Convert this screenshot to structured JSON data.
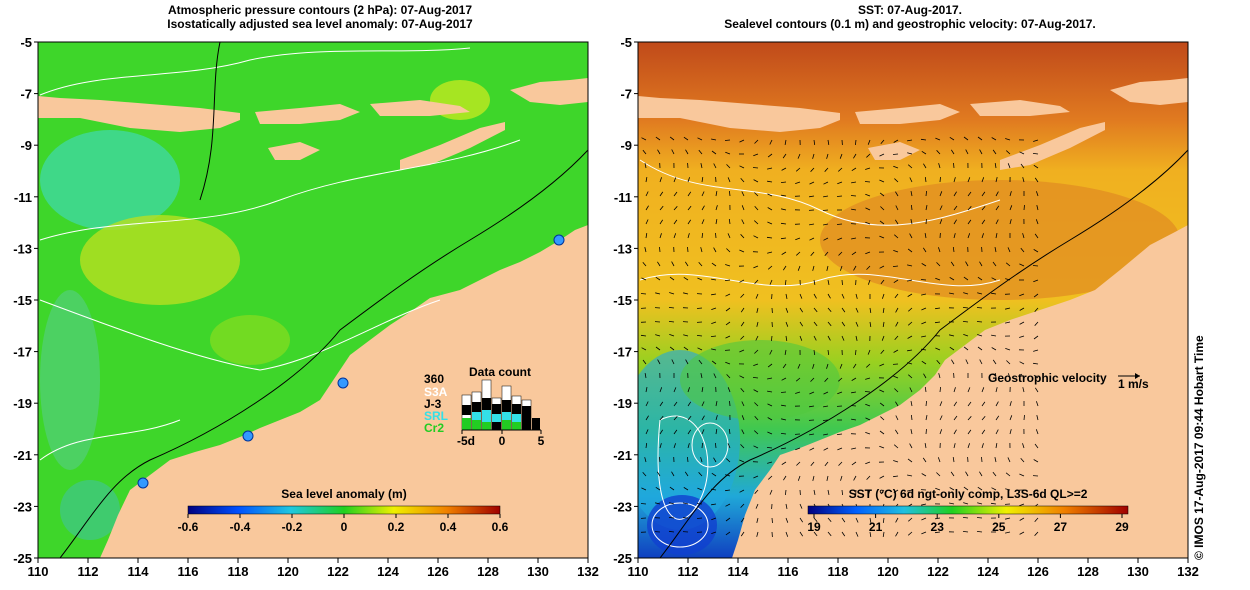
{
  "left_panel": {
    "title_line1": "Atmospheric pressure contours (2 hPa): 07-Aug-2017",
    "title_line2": "Isostatically adjusted sea level anomaly: 07-Aug-2017",
    "colorbar": {
      "label": "Sea level anomaly (m)",
      "ticks": [
        "-0.6",
        "-0.4",
        "-0.2",
        "0",
        "0.2",
        "0.4",
        "0.6"
      ]
    },
    "data_count": {
      "title": "Data count",
      "max_label": "360",
      "legend": [
        {
          "label": "S3A",
          "color": "#ffffff"
        },
        {
          "label": "J-3",
          "color": "#000000"
        },
        {
          "label": "SRL",
          "color": "#33e0e8"
        },
        {
          "label": "Cr2",
          "color": "#22cc22"
        }
      ],
      "x_ticks": [
        "-5d",
        "0",
        "5"
      ]
    }
  },
  "right_panel": {
    "title_line1": "SST: 07-Aug-2017.",
    "title_line2": "Sealevel contours (0.1 m) and geostrophic velocity: 07-Aug-2017.",
    "velocity_label": "Geostrophic velocity",
    "velocity_scale": "1 m/s",
    "colorbar": {
      "label": "SST (°C) 6d ngt-only comp, L3S-6d QL>=2",
      "ticks": [
        "19",
        "21",
        "23",
        "25",
        "27",
        "29"
      ]
    }
  },
  "axes": {
    "x_ticks": [
      "110",
      "112",
      "114",
      "116",
      "118",
      "120",
      "122",
      "124",
      "126",
      "128",
      "130",
      "132"
    ],
    "y_ticks": [
      "-5",
      "-7",
      "-9",
      "-11",
      "-13",
      "-15",
      "-17",
      "-19",
      "-21",
      "-23",
      "-25"
    ]
  },
  "side_label": "© IMOS 17-Aug-2017 09:44 Hobart Time",
  "colors": {
    "land": "#f9c89c",
    "ocean_green": "#3ed62a",
    "sst_orange": "#f0a020",
    "sst_red": "#c84a18"
  }
}
